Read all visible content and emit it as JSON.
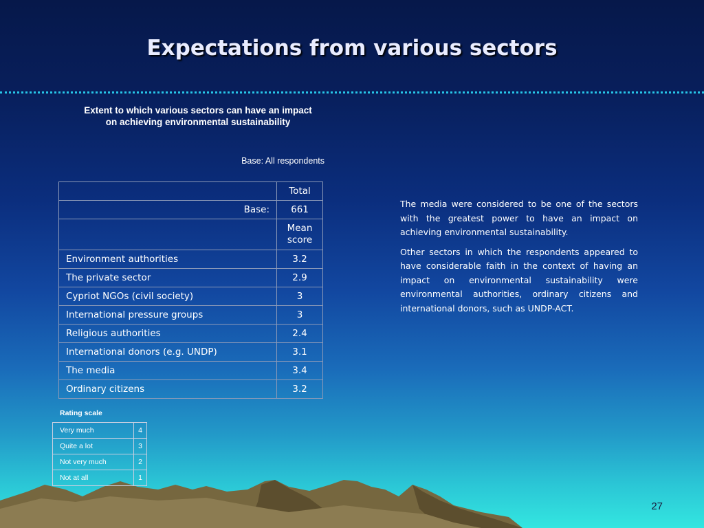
{
  "slide": {
    "title": "Expectations from various sectors",
    "page_number": "27"
  },
  "table": {
    "title_line1": "Extent to which various sectors can have an impact",
    "title_line2": "on achieving environmental sustainability",
    "base_note": "Base: All respondents",
    "header_total": "Total",
    "base_label": "Base:",
    "base_value": "661",
    "mean_label_line1": "Mean",
    "mean_label_line2": "score",
    "rows": [
      {
        "label": "Environment authorities",
        "value": "3.2"
      },
      {
        "label": "The private sector",
        "value": "2.9"
      },
      {
        "label": "Cypriot NGOs (civil society)",
        "value": "3"
      },
      {
        "label": "International pressure groups",
        "value": "3"
      },
      {
        "label": "Religious authorities",
        "value": "2.4"
      },
      {
        "label": "International donors (e.g. UNDP)",
        "value": "3.1"
      },
      {
        "label": "The media",
        "value": "3.4"
      },
      {
        "label": "Ordinary citizens",
        "value": "3.2"
      }
    ]
  },
  "rating_scale": {
    "title": "Rating scale",
    "items": [
      {
        "label": "Very much",
        "value": "4"
      },
      {
        "label": "Quite a lot",
        "value": "3"
      },
      {
        "label": "Not very much",
        "value": "2"
      },
      {
        "label": "Not at all",
        "value": "1"
      }
    ]
  },
  "commentary": {
    "paragraph1": "The media were considered to be one of the sectors with the greatest power to have an impact on achieving environmental sustainability.",
    "paragraph2": "Other sectors in which the respondents appeared to have considerable faith in the context of having an impact on environmental sustainability were environmental authorities, ordinary citizens and international donors, such as UNDP-ACT."
  },
  "colors": {
    "divider": "#27c6e8",
    "mountain": "#7a6a44"
  }
}
